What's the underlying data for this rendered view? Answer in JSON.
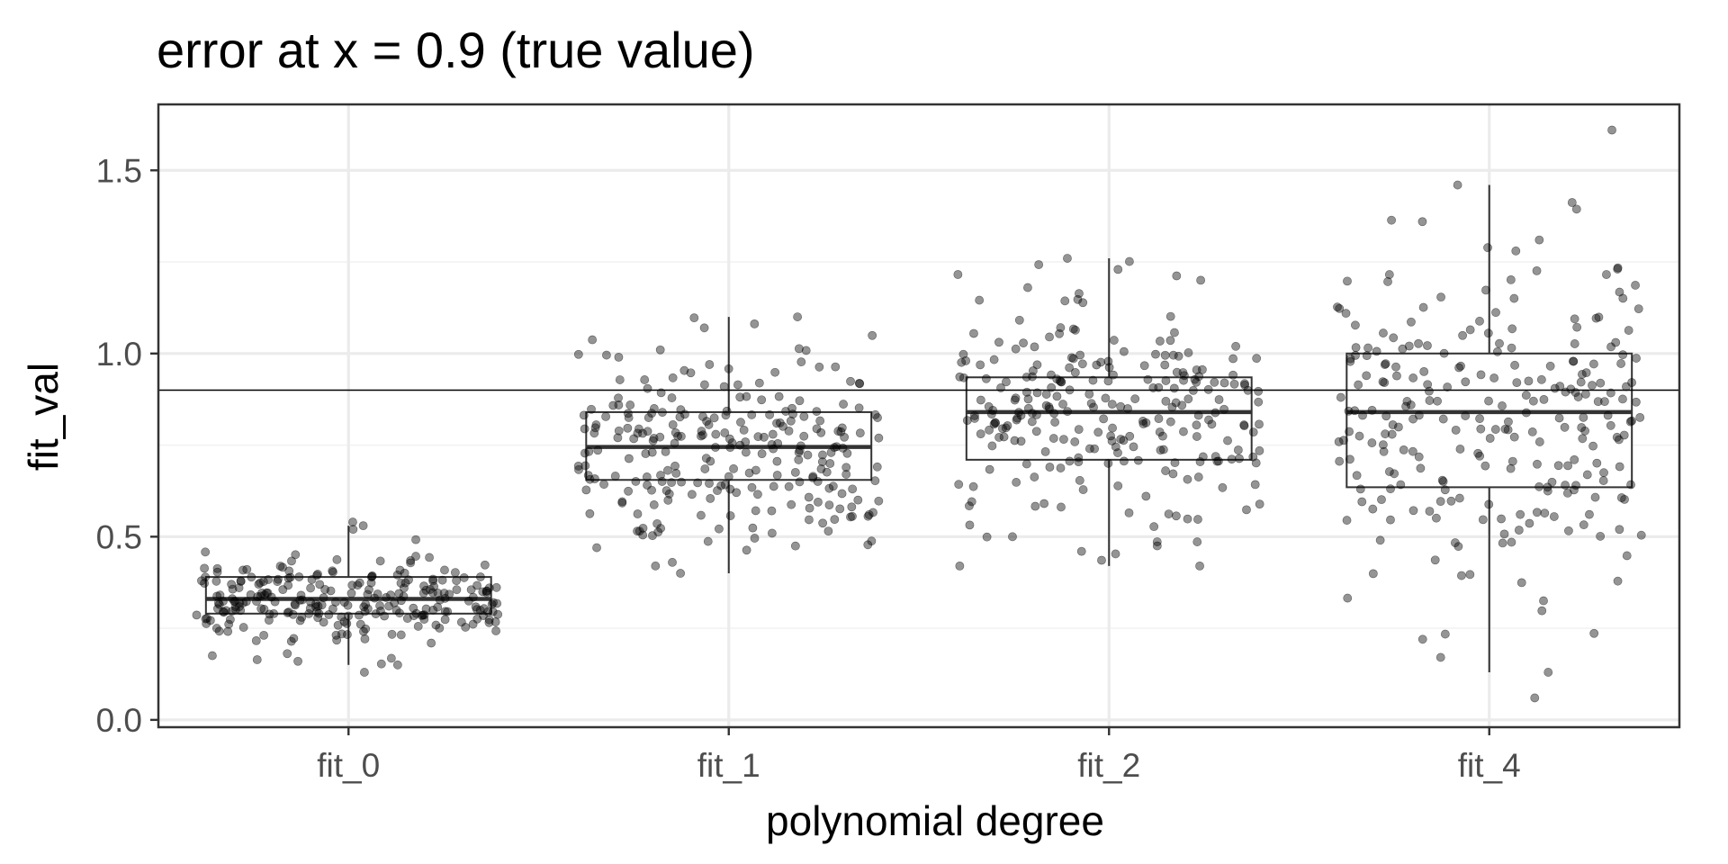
{
  "chart_data": {
    "type": "boxplot",
    "title": "error at x = 0.9 (true value)",
    "xlabel": "polynomial degree",
    "ylabel": "fit_val",
    "categories": [
      "fit_0",
      "fit_1",
      "fit_2",
      "fit_4"
    ],
    "ylim": [
      -0.02,
      1.68
    ],
    "y_ticks": [
      "0.0",
      "0.5",
      "1.0",
      "1.5"
    ],
    "reference_line": 0.9,
    "grid": true,
    "theme": "bw",
    "colors": {
      "background": "#ffffff",
      "grid_major": "#ebebeb",
      "grid_minor": "#f2f2f2",
      "panel_border": "#333333",
      "points": "#000000",
      "box": "#333333",
      "tick_text": "#4d4d4d"
    },
    "boxes": [
      {
        "category": "fit_0",
        "min": 0.15,
        "q1": 0.29,
        "median": 0.33,
        "q3": 0.39,
        "max": 0.53
      },
      {
        "category": "fit_1",
        "min": 0.4,
        "q1": 0.655,
        "median": 0.745,
        "q3": 0.84,
        "max": 1.1
      },
      {
        "category": "fit_2",
        "min": 0.42,
        "q1": 0.71,
        "median": 0.84,
        "q3": 0.935,
        "max": 1.26
      },
      {
        "category": "fit_4",
        "min": 0.13,
        "q1": 0.635,
        "median": 0.84,
        "q3": 1.0,
        "max": 1.46
      }
    ],
    "points": [
      {
        "category": "fit_0",
        "count": 250,
        "center": 0.33,
        "spread": 0.06,
        "outliers": [
          0.13,
          0.15,
          0.16,
          0.52,
          0.54,
          0.53
        ]
      },
      {
        "category": "fit_1",
        "count": 250,
        "center": 0.745,
        "spread": 0.13,
        "outliers": [
          0.4,
          0.43,
          0.47,
          1.07,
          1.1,
          1.01
        ]
      },
      {
        "category": "fit_2",
        "count": 250,
        "center": 0.83,
        "spread": 0.15,
        "outliers": [
          0.42,
          0.46,
          0.5,
          1.18,
          1.2,
          1.26
        ]
      },
      {
        "category": "fit_4",
        "count": 250,
        "center": 0.82,
        "spread": 0.22,
        "outliers": [
          0.06,
          0.13,
          0.22,
          1.31,
          1.36,
          1.46,
          1.61
        ]
      }
    ]
  }
}
